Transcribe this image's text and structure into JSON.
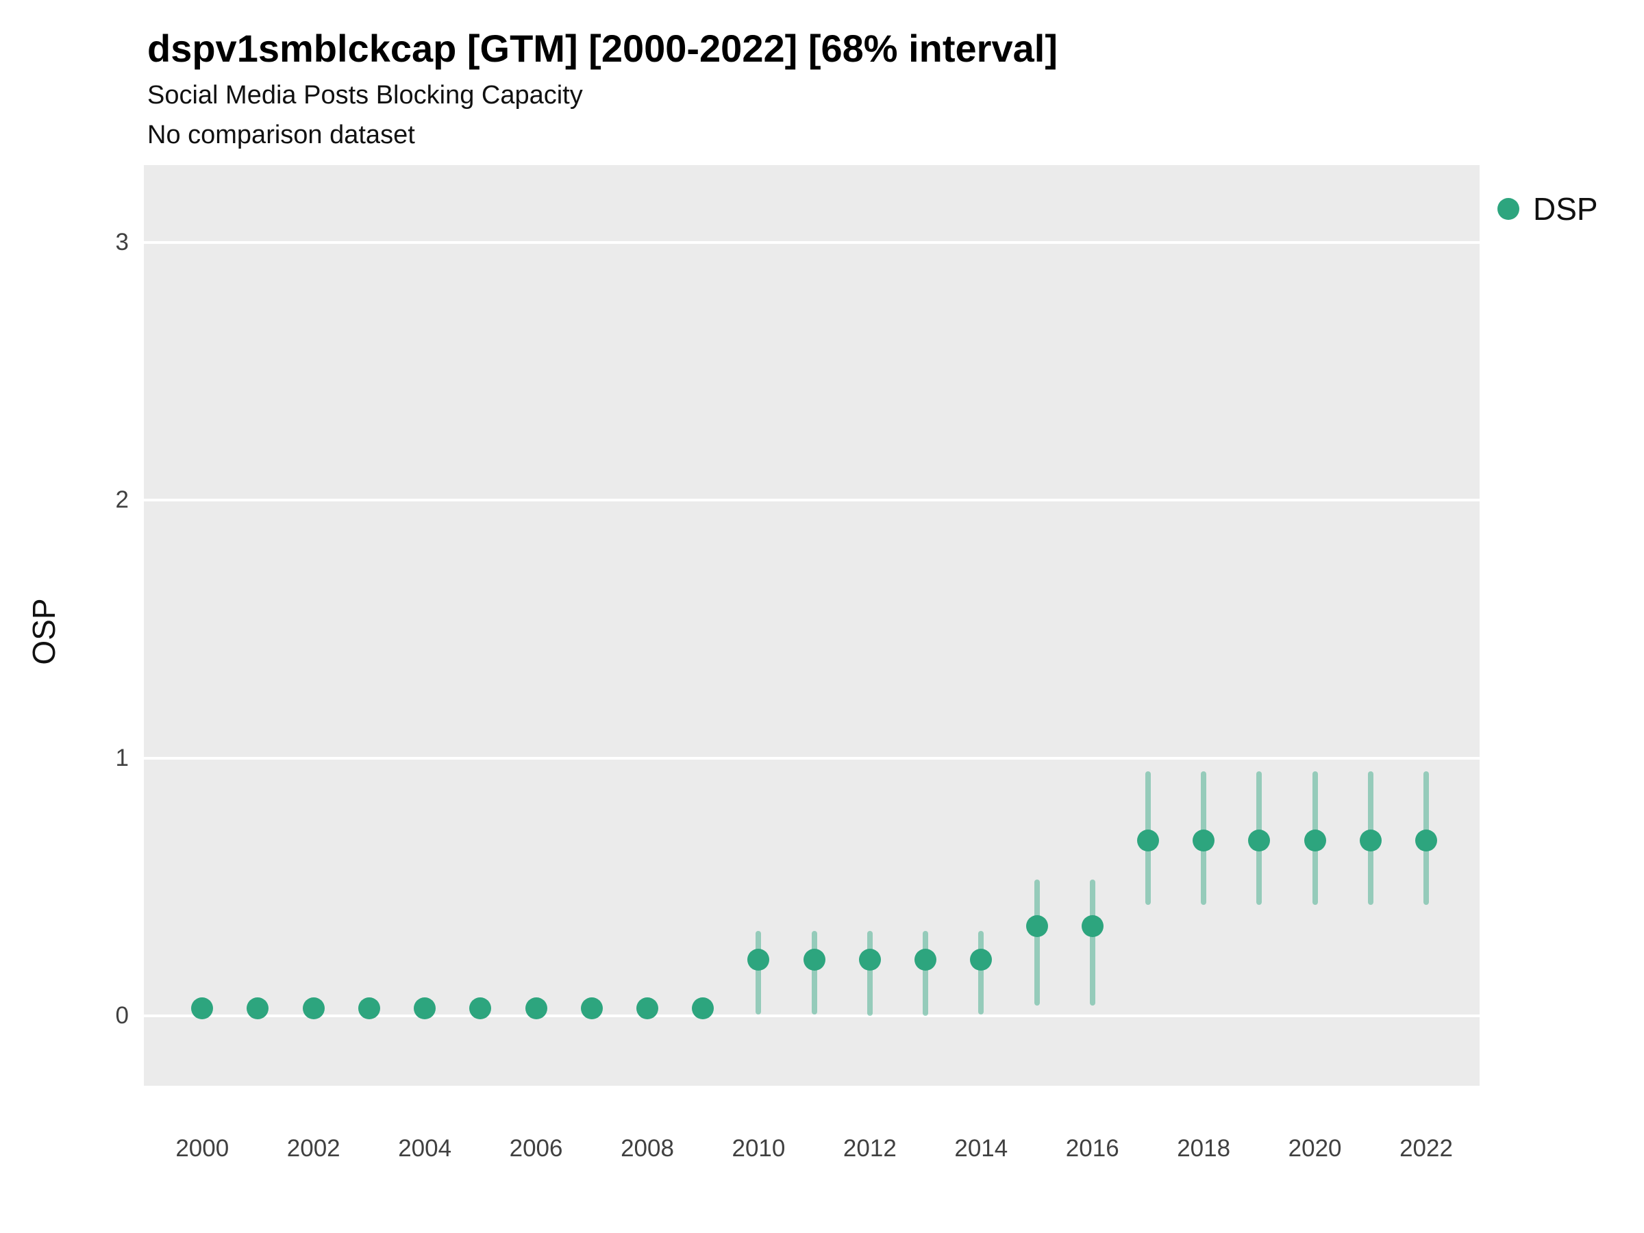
{
  "header": {
    "title": "dspv1smblckcap [GTM] [2000-2022] [68% interval]",
    "subtitle1": "Social Media Posts Blocking Capacity",
    "subtitle2": "No comparison dataset"
  },
  "legend": {
    "label": "DSP"
  },
  "axes": {
    "y_label": "OSP"
  },
  "colors": {
    "point": "#2DA57E",
    "error_bar": "rgba(45, 165, 126, 0.45)",
    "panel_background": "#EBEBEB",
    "gridline": "#FFFFFF"
  },
  "chart_data": {
    "type": "scatter",
    "title": "dspv1smblckcap [GTM] [2000-2022] [68% interval]",
    "subtitle": "Social Media Posts Blocking Capacity",
    "note": "No comparison dataset",
    "interval": "68%",
    "xlabel": "",
    "ylabel": "OSP",
    "legend_position": "right",
    "grid": true,
    "xlim": [
      1998.95,
      2022.96
    ],
    "ylim": [
      -0.27,
      3.3
    ],
    "xticks": [
      2000,
      2002,
      2004,
      2006,
      2008,
      2010,
      2012,
      2014,
      2016,
      2018,
      2020,
      2022
    ],
    "yticks": [
      0,
      1,
      2,
      3
    ],
    "series": [
      {
        "name": "DSP",
        "color": "#2DA57E",
        "points": [
          {
            "x": 2000,
            "y": 0.03,
            "lo": 0.005,
            "hi": 0.06
          },
          {
            "x": 2001,
            "y": 0.03,
            "lo": 0.005,
            "hi": 0.06
          },
          {
            "x": 2002,
            "y": 0.03,
            "lo": 0.005,
            "hi": 0.06
          },
          {
            "x": 2003,
            "y": 0.03,
            "lo": 0.005,
            "hi": 0.06
          },
          {
            "x": 2004,
            "y": 0.03,
            "lo": 0.005,
            "hi": 0.06
          },
          {
            "x": 2005,
            "y": 0.03,
            "lo": 0.005,
            "hi": 0.06
          },
          {
            "x": 2006,
            "y": 0.03,
            "lo": 0.005,
            "hi": 0.06
          },
          {
            "x": 2007,
            "y": 0.03,
            "lo": 0.005,
            "hi": 0.06
          },
          {
            "x": 2008,
            "y": 0.03,
            "lo": 0.005,
            "hi": 0.06
          },
          {
            "x": 2009,
            "y": 0.03,
            "lo": 0.005,
            "hi": 0.06
          },
          {
            "x": 2010,
            "y": 0.22,
            "lo": 0.005,
            "hi": 0.33
          },
          {
            "x": 2011,
            "y": 0.22,
            "lo": 0.005,
            "hi": 0.33
          },
          {
            "x": 2012,
            "y": 0.22,
            "lo": 0.0,
            "hi": 0.33
          },
          {
            "x": 2013,
            "y": 0.22,
            "lo": 0.0,
            "hi": 0.33
          },
          {
            "x": 2014,
            "y": 0.22,
            "lo": 0.005,
            "hi": 0.33
          },
          {
            "x": 2015,
            "y": 0.35,
            "lo": 0.04,
            "hi": 0.53
          },
          {
            "x": 2016,
            "y": 0.35,
            "lo": 0.04,
            "hi": 0.53
          },
          {
            "x": 2017,
            "y": 0.68,
            "lo": 0.43,
            "hi": 0.95
          },
          {
            "x": 2018,
            "y": 0.68,
            "lo": 0.43,
            "hi": 0.95
          },
          {
            "x": 2019,
            "y": 0.68,
            "lo": 0.43,
            "hi": 0.95
          },
          {
            "x": 2020,
            "y": 0.68,
            "lo": 0.43,
            "hi": 0.95
          },
          {
            "x": 2021,
            "y": 0.68,
            "lo": 0.43,
            "hi": 0.95
          },
          {
            "x": 2022,
            "y": 0.68,
            "lo": 0.43,
            "hi": 0.95
          }
        ]
      }
    ]
  }
}
